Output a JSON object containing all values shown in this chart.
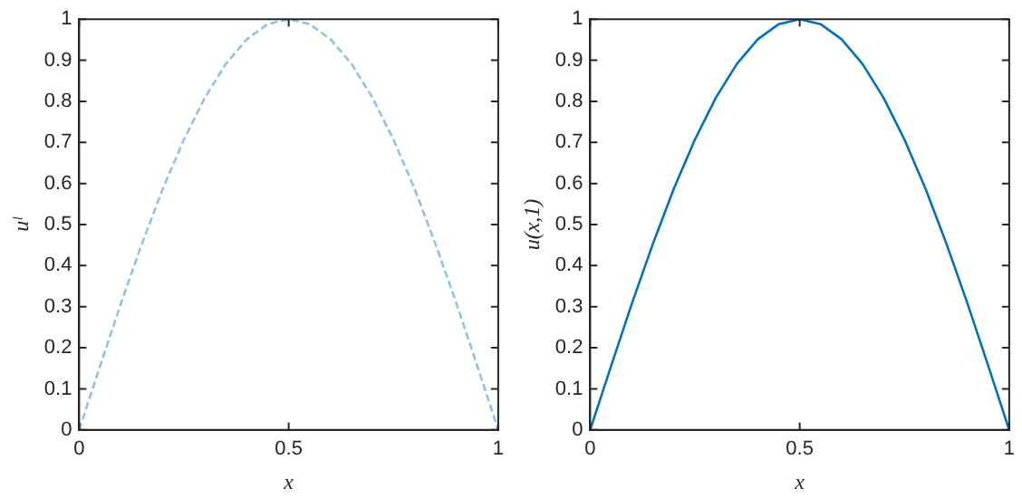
{
  "chart_data": [
    {
      "type": "line",
      "xlabel": "x",
      "ylabel": "uˡ",
      "x": [
        0,
        0.05,
        0.1,
        0.15,
        0.2,
        0.25,
        0.3,
        0.35,
        0.4,
        0.45,
        0.5,
        0.55,
        0.6,
        0.65,
        0.7,
        0.75,
        0.8,
        0.85,
        0.9,
        0.95,
        1
      ],
      "series": [
        {
          "color": "#8fc3e6",
          "line_style": "dashed",
          "values": [
            0,
            0.156,
            0.309,
            0.454,
            0.588,
            0.707,
            0.809,
            0.891,
            0.951,
            0.988,
            1,
            0.988,
            0.951,
            0.891,
            0.809,
            0.707,
            0.588,
            0.454,
            0.309,
            0.156,
            0
          ]
        }
      ],
      "xlim": [
        0,
        1
      ],
      "xticks": [
        0,
        0.5,
        1
      ],
      "ylim": [
        0,
        1
      ],
      "yticks": [
        0,
        0.1,
        0.2,
        0.3,
        0.4,
        0.5,
        0.6,
        0.7,
        0.8,
        0.9,
        1
      ],
      "grid": false,
      "legend": false,
      "marker": "none"
    },
    {
      "type": "line",
      "xlabel": "x",
      "ylabel": "u(x,1)",
      "x": [
        0,
        0.05,
        0.1,
        0.15,
        0.2,
        0.25,
        0.3,
        0.35,
        0.4,
        0.45,
        0.5,
        0.55,
        0.6,
        0.65,
        0.7,
        0.75,
        0.8,
        0.85,
        0.9,
        0.95,
        1
      ],
      "series": [
        {
          "color": "#0072bd",
          "line_style": "solid",
          "values": [
            0,
            0.156,
            0.309,
            0.454,
            0.588,
            0.707,
            0.809,
            0.891,
            0.951,
            0.988,
            1,
            0.988,
            0.951,
            0.891,
            0.809,
            0.707,
            0.588,
            0.454,
            0.309,
            0.156,
            0
          ]
        }
      ],
      "xlim": [
        0,
        1
      ],
      "xticks": [
        0,
        0.5,
        1
      ],
      "ylim": [
        0,
        1
      ],
      "yticks": [
        0,
        0.1,
        0.2,
        0.3,
        0.4,
        0.5,
        0.6,
        0.7,
        0.8,
        0.9,
        1
      ],
      "grid": false,
      "legend": false,
      "marker": "none"
    }
  ]
}
